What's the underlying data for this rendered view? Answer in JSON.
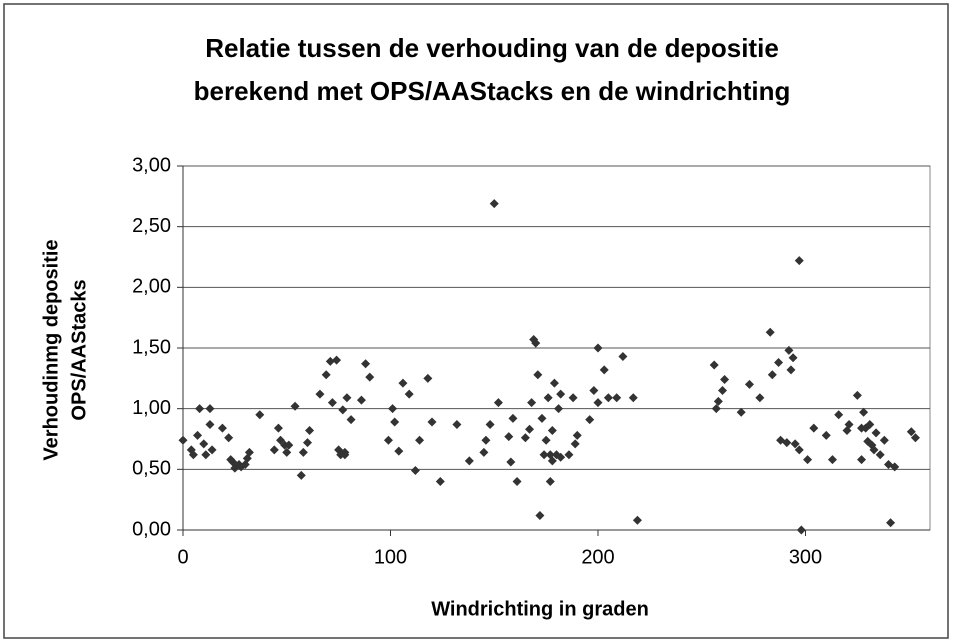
{
  "chart_data": {
    "type": "scatter",
    "title": [
      "Relatie tussen de verhouding van de depositie",
      "berekend met OPS/AAStacks en de windrichting"
    ],
    "xlabel": "Windrichting in graden",
    "ylabel": [
      "Verhoudinmg depositie",
      "OPS/AAStacks"
    ],
    "color": "#333333",
    "grid": true,
    "xlim": [
      0,
      360
    ],
    "xticks": [
      0,
      100,
      200,
      300
    ],
    "ylim": [
      0,
      3
    ],
    "yticks": [
      {
        "value": 0,
        "label": "0,00"
      },
      {
        "value": 0.5,
        "label": "0,50"
      },
      {
        "value": 1,
        "label": "1,00"
      },
      {
        "value": 1.5,
        "label": "1,50"
      },
      {
        "value": 2,
        "label": "2,00"
      },
      {
        "value": 2.5,
        "label": "2,50"
      },
      {
        "value": 3,
        "label": "3,00"
      }
    ],
    "x": [
      0,
      4,
      5,
      7,
      8,
      10,
      11,
      13,
      13,
      14,
      19,
      22,
      23,
      24,
      25,
      27,
      28,
      30,
      31,
      32,
      37,
      44,
      46,
      47,
      49,
      50,
      51,
      54,
      57,
      58,
      60,
      61,
      66,
      69,
      71,
      72,
      74,
      75,
      76,
      77,
      78,
      78,
      79,
      81,
      86,
      88,
      90,
      99,
      101,
      102,
      104,
      106,
      109,
      112,
      114,
      118,
      120,
      124,
      132,
      138,
      145,
      146,
      148,
      150,
      152,
      157,
      158,
      159,
      161,
      165,
      167,
      168,
      169,
      170,
      171,
      172,
      173,
      174,
      175,
      176,
      177,
      177,
      178,
      178,
      179,
      180,
      181,
      182,
      182,
      186,
      188,
      189,
      190,
      196,
      198,
      200,
      200,
      203,
      205,
      209,
      212,
      217,
      219,
      256,
      257,
      258,
      260,
      261,
      269,
      273,
      278,
      283,
      284,
      287,
      288,
      291,
      292,
      293,
      294,
      295,
      297,
      297,
      298,
      301,
      304,
      310,
      313,
      316,
      320,
      321,
      325,
      327,
      327,
      328,
      329,
      330,
      331,
      332,
      333,
      334,
      336,
      338,
      340,
      341,
      343,
      351,
      353
    ],
    "y": [
      0.74,
      0.66,
      0.62,
      0.78,
      1.0,
      0.71,
      0.62,
      1.0,
      0.87,
      0.66,
      0.84,
      0.76,
      0.58,
      0.56,
      0.51,
      0.54,
      0.52,
      0.54,
      0.59,
      0.64,
      0.95,
      0.66,
      0.84,
      0.74,
      0.7,
      0.64,
      0.7,
      1.02,
      0.45,
      0.64,
      0.72,
      0.82,
      1.12,
      1.28,
      1.39,
      1.05,
      1.4,
      0.66,
      0.62,
      0.99,
      0.64,
      0.62,
      1.09,
      0.91,
      1.07,
      1.37,
      1.26,
      0.74,
      1.0,
      0.89,
      0.65,
      1.21,
      1.12,
      0.49,
      0.74,
      1.25,
      0.89,
      0.4,
      0.87,
      0.57,
      0.64,
      0.74,
      0.87,
      2.69,
      1.05,
      0.77,
      0.56,
      0.92,
      0.4,
      0.76,
      0.83,
      1.05,
      1.57,
      1.54,
      1.28,
      0.12,
      0.92,
      0.62,
      0.74,
      1.09,
      0.4,
      0.62,
      0.82,
      0.57,
      1.21,
      0.62,
      1.0,
      1.12,
      0.6,
      0.62,
      1.09,
      0.71,
      0.78,
      0.91,
      1.15,
      1.5,
      1.05,
      1.32,
      1.09,
      1.09,
      1.43,
      1.09,
      0.08,
      1.36,
      1.0,
      1.06,
      1.15,
      1.24,
      0.97,
      1.2,
      1.09,
      1.63,
      1.28,
      1.38,
      0.74,
      0.72,
      1.48,
      1.32,
      1.42,
      0.71,
      2.22,
      0.66,
      0.0,
      0.58,
      0.84,
      0.78,
      0.58,
      0.95,
      0.82,
      0.87,
      1.11,
      0.84,
      0.58,
      0.97,
      0.84,
      0.73,
      0.87,
      0.7,
      0.66,
      0.8,
      0.62,
      0.74,
      0.54,
      0.06,
      0.52,
      0.81,
      0.76
    ]
  }
}
